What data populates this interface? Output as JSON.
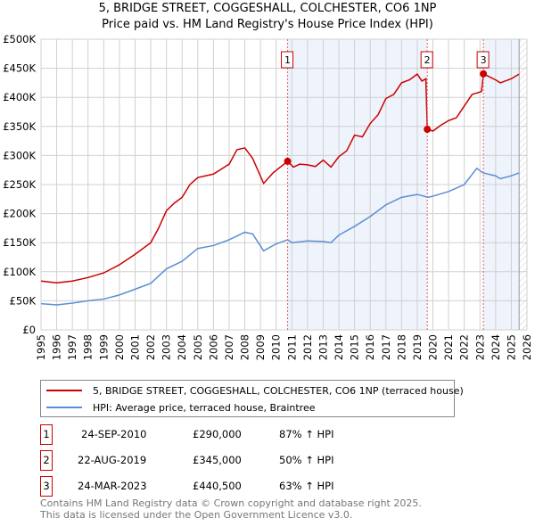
{
  "chart_data": {
    "type": "line",
    "title": "5, BRIDGE STREET, COGGESHALL, COLCHESTER, CO6 1NP",
    "subtitle": "Price paid vs. HM Land Registry's House Price Index (HPI)",
    "xlim": [
      1995,
      2026
    ],
    "ylim": [
      0,
      500000
    ],
    "yticks": [
      "£0",
      "£50K",
      "£100K",
      "£150K",
      "£200K",
      "£250K",
      "£300K",
      "£350K",
      "£400K",
      "£450K",
      "£500K"
    ],
    "xticks": [
      "1995",
      "1996",
      "1997",
      "1998",
      "1999",
      "2000",
      "2001",
      "2002",
      "2003",
      "2004",
      "2005",
      "2006",
      "2007",
      "2008",
      "2009",
      "2010",
      "2011",
      "2012",
      "2013",
      "2014",
      "2015",
      "2016",
      "2017",
      "2018",
      "2019",
      "2020",
      "2021",
      "2022",
      "2023",
      "2024",
      "2025",
      "2026"
    ],
    "series": [
      {
        "name": "5, BRIDGE STREET, COGGESHALL, COLCHESTER, CO6 1NP (terraced house)",
        "color": "#cc0000",
        "x": [
          1995,
          1996,
          1997,
          1998,
          1999,
          2000,
          2001,
          2002,
          2002.5,
          2003,
          2003.5,
          2004,
          2004.5,
          2005,
          2006,
          2007,
          2007.5,
          2008,
          2008.5,
          2009.2,
          2009.8,
          2010.73,
          2011.1,
          2011.5,
          2012,
          2012.5,
          2013,
          2013.5,
          2014,
          2014.5,
          2015,
          2015.5,
          2016,
          2016.5,
          2017,
          2017.5,
          2018,
          2018.5,
          2019,
          2019.3,
          2019.55,
          2019.64,
          2020,
          2020.5,
          2021,
          2021.5,
          2022,
          2022.5,
          2023.1,
          2023.22,
          2024,
          2024.3,
          2025,
          2025.5
        ],
        "y": [
          84000,
          81000,
          84000,
          90000,
          98000,
          112000,
          130000,
          150000,
          175000,
          205000,
          218000,
          228000,
          250000,
          262000,
          268000,
          285000,
          310000,
          313000,
          295000,
          252000,
          270000,
          290000,
          280000,
          285000,
          284000,
          281000,
          292000,
          280000,
          298000,
          308000,
          335000,
          332000,
          355000,
          370000,
          398000,
          405000,
          425000,
          430000,
          440000,
          428000,
          432000,
          345000,
          342000,
          352000,
          360000,
          365000,
          385000,
          405000,
          410000,
          440500,
          430000,
          425000,
          432000,
          440000
        ]
      },
      {
        "name": "HPI: Average price, terraced house, Braintree",
        "color": "#5b8fd4",
        "x": [
          1995,
          1996,
          1997,
          1998,
          1999,
          2000,
          2001,
          2002,
          2003,
          2004,
          2005,
          2006,
          2007,
          2008,
          2008.5,
          2009.2,
          2010,
          2010.73,
          2011,
          2012,
          2013,
          2013.5,
          2014,
          2015,
          2016,
          2017,
          2018,
          2019,
          2019.7,
          2020,
          2021,
          2022,
          2022.8,
          2023.2,
          2024,
          2024.3,
          2025,
          2025.5
        ],
        "y": [
          45000,
          43000,
          46000,
          50000,
          53000,
          60000,
          70000,
          80000,
          105000,
          118000,
          140000,
          145000,
          155000,
          168000,
          165000,
          136000,
          148000,
          155000,
          150000,
          153000,
          152000,
          150000,
          163000,
          178000,
          195000,
          215000,
          228000,
          233000,
          228000,
          230000,
          238000,
          250000,
          278000,
          270000,
          265000,
          260000,
          265000,
          270000
        ]
      }
    ],
    "sales": [
      {
        "label": "1",
        "date": "24-SEP-2010",
        "x": 2010.73,
        "price": "£290,000",
        "value": 290000,
        "hpi": "87% ↑ HPI"
      },
      {
        "label": "2",
        "date": "22-AUG-2019",
        "x": 2019.64,
        "price": "£345,000",
        "value": 345000,
        "hpi": "50% ↑ HPI"
      },
      {
        "label": "3",
        "date": "24-MAR-2023",
        "x": 2023.22,
        "price": "£440,500",
        "value": 440500,
        "hpi": "63% ↑ HPI"
      }
    ],
    "shaded_ranges": [
      [
        2010.73,
        2019.64
      ],
      [
        2023.22,
        2025.5
      ]
    ],
    "forecast_from": 2025.5,
    "grid": true,
    "legend": "below"
  },
  "footer": {
    "line1": "Contains HM Land Registry data © Crown copyright and database right 2025.",
    "line2": "This data is licensed under the Open Government Licence v3.0."
  }
}
